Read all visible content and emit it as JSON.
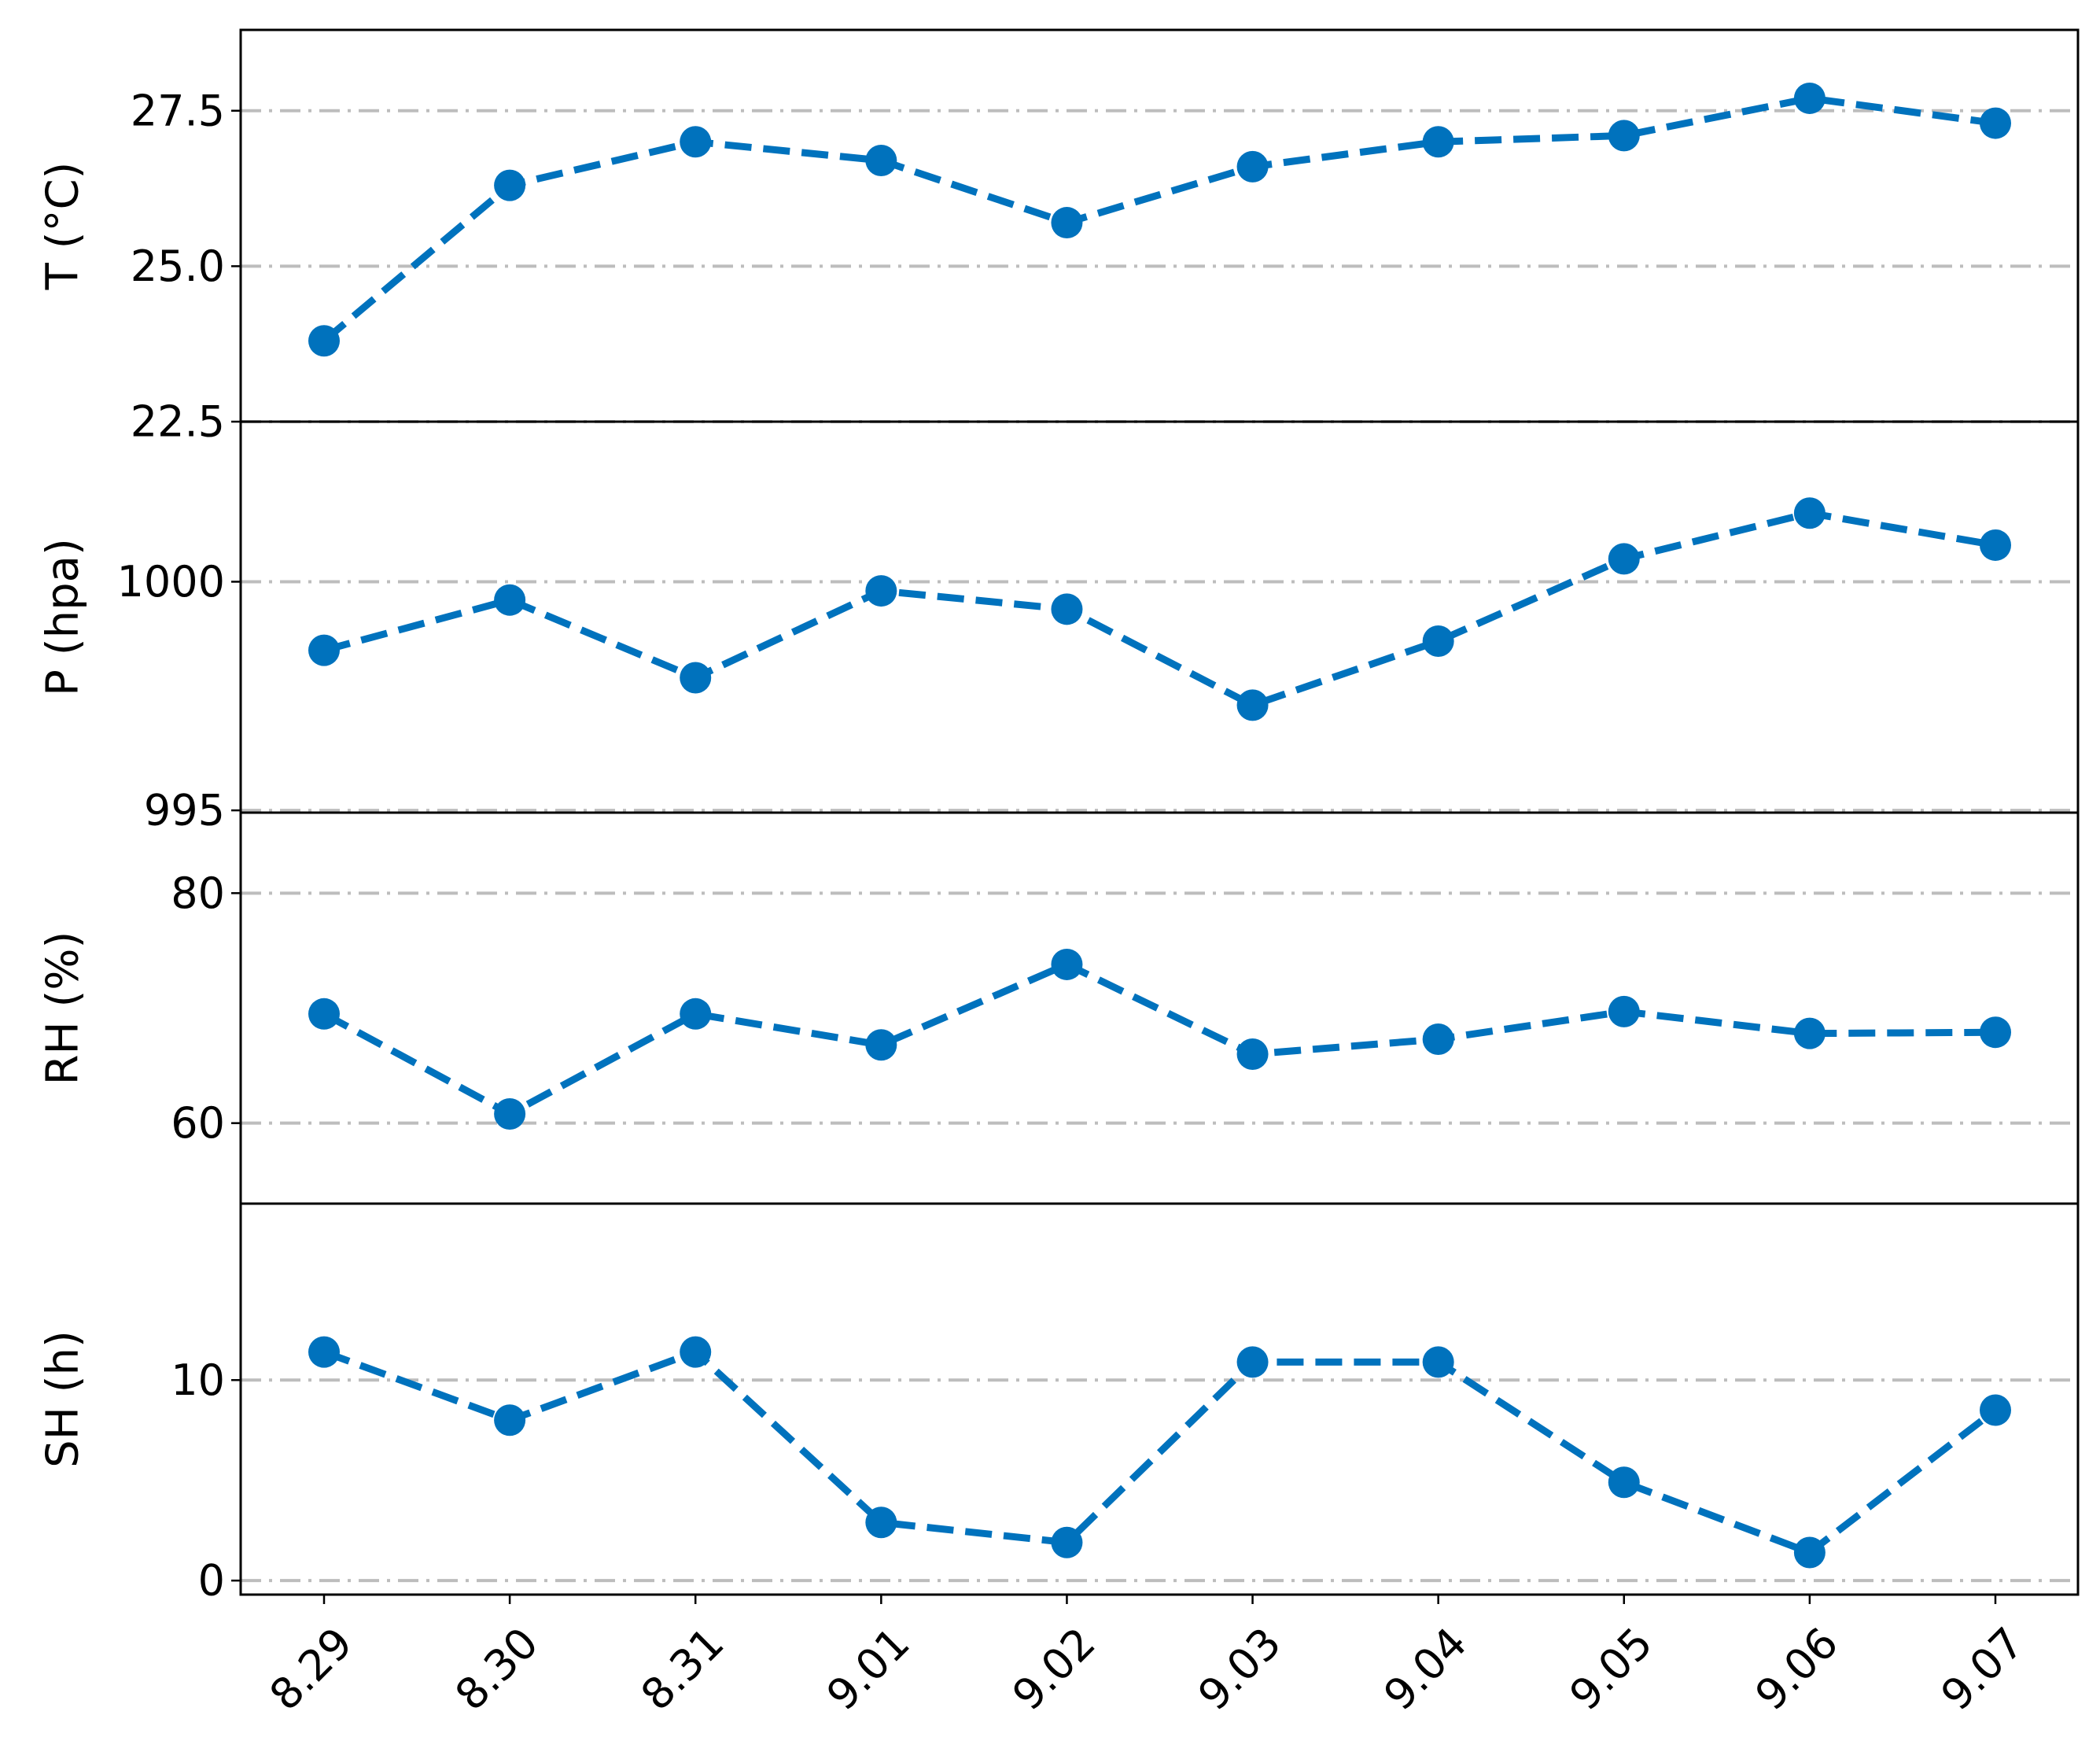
{
  "chart_data": {
    "type": "line",
    "x": [
      "8.29",
      "8.30",
      "8.31",
      "9.01",
      "9.02",
      "9.03",
      "9.04",
      "9.05",
      "9.06",
      "9.07"
    ],
    "line_color": "#0072bd",
    "grid_color": "#bdbdbd",
    "grid": true,
    "linestyle": "dashed",
    "marker": "circle",
    "subplots": [
      {
        "ylabel": "T (°C)",
        "ylim": [
          22.5,
          28.8
        ],
        "yticks": [
          "22.5",
          "25.0",
          "27.5"
        ],
        "ytick_values": [
          22.5,
          25.0,
          27.5
        ],
        "values": [
          23.8,
          26.3,
          27.0,
          26.7,
          25.7,
          26.6,
          27.0,
          27.1,
          27.7,
          27.3
        ]
      },
      {
        "ylabel": "P (hpa)",
        "ylim": [
          994.95,
          1003.5
        ],
        "yticks": [
          "995",
          "1000"
        ],
        "ytick_values": [
          995,
          1000
        ],
        "values": [
          998.5,
          999.6,
          997.9,
          999.8,
          999.4,
          997.3,
          998.7,
          1000.5,
          1001.5,
          1000.8
        ]
      },
      {
        "ylabel": "RH (%)",
        "ylim": [
          53,
          87
        ],
        "yticks": [
          "60",
          "80"
        ],
        "ytick_values": [
          60,
          80
        ],
        "values": [
          69.5,
          60.8,
          69.5,
          66.8,
          73.8,
          66.0,
          67.3,
          69.7,
          67.8,
          67.9
        ]
      },
      {
        "ylabel": "SH (h)",
        "ylim": [
          -0.7,
          18.8
        ],
        "yticks": [
          "0",
          "10"
        ],
        "ytick_values": [
          0,
          10
        ],
        "values": [
          11.4,
          8.0,
          11.4,
          2.9,
          1.9,
          10.9,
          10.9,
          4.9,
          1.4,
          8.5
        ]
      }
    ]
  }
}
